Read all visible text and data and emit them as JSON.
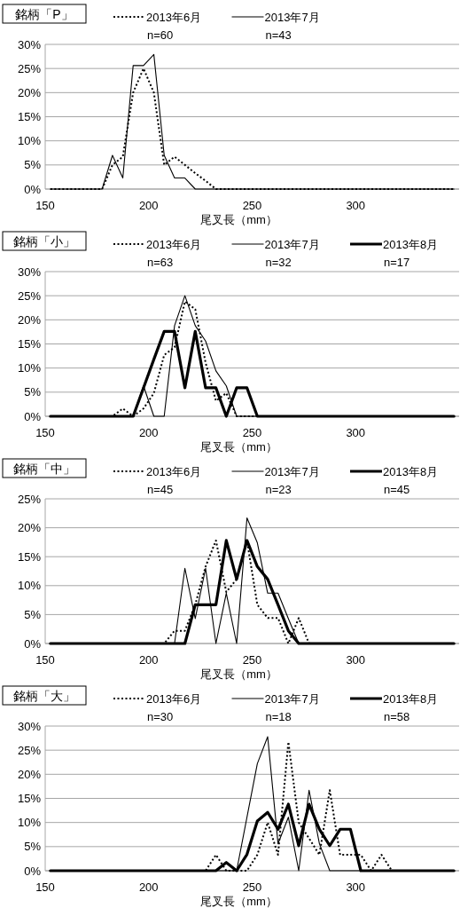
{
  "chart_data": [
    {
      "type": "line",
      "title": "銘柄「P」",
      "xlabel": "尾叉長（mm）",
      "legend": "top",
      "grid": "y",
      "marker": "none",
      "xlim": [
        150,
        350
      ],
      "xticks": [
        150,
        200,
        250,
        300
      ],
      "ylim": [
        0,
        30
      ],
      "yticks": [
        {
          "value": 0,
          "label": "0%"
        },
        {
          "value": 5,
          "label": "5%"
        },
        {
          "value": 10,
          "label": "10%"
        },
        {
          "value": 15,
          "label": "15%"
        },
        {
          "value": 20,
          "label": "20%"
        },
        {
          "value": 25,
          "label": "25%"
        },
        {
          "value": 30,
          "label": "30%"
        }
      ],
      "x": [
        152.5,
        157.5,
        162.5,
        167.5,
        172.5,
        177.5,
        182.5,
        187.5,
        192.5,
        197.5,
        202.5,
        207.5,
        212.5,
        217.5,
        222.5,
        227.5,
        232.5,
        237.5,
        242.5,
        247.5,
        252.5,
        257.5,
        262.5,
        267.5,
        272.5,
        277.5,
        282.5,
        287.5,
        292.5,
        297.5,
        302.5,
        307.5,
        312.5,
        317.5,
        322.5,
        327.5,
        332.5,
        337.5,
        342.5,
        347.5
      ],
      "series": [
        {
          "name": "2013年6月\nn=60",
          "color": "#000000",
          "line_style": "dotted",
          "values": [
            0,
            0,
            0,
            0,
            0,
            0,
            5,
            6.7,
            20,
            25,
            20,
            5,
            6.7,
            5,
            3.3,
            1.7,
            0,
            0,
            0,
            0,
            0,
            0,
            0,
            0,
            0,
            0,
            0,
            0,
            0,
            0,
            0,
            0,
            0,
            0,
            0,
            0,
            0,
            0,
            0,
            0
          ]
        },
        {
          "name": "2013年7月\nn=43",
          "color": "#000000",
          "line_style": "solid",
          "values": [
            0,
            0,
            0,
            0,
            0,
            0,
            7,
            2.3,
            25.6,
            25.6,
            27.9,
            7,
            2.3,
            2.3,
            0,
            0,
            0,
            0,
            0,
            0,
            0,
            0,
            0,
            0,
            0,
            0,
            0,
            0,
            0,
            0,
            0,
            0,
            0,
            0,
            0,
            0,
            0,
            0,
            0,
            0
          ]
        }
      ]
    },
    {
      "type": "line",
      "title": "銘柄「小」",
      "xlabel": "尾叉長（mm）",
      "legend": "top",
      "grid": "y",
      "marker": "none",
      "xlim": [
        150,
        350
      ],
      "xticks": [
        150,
        200,
        250,
        300
      ],
      "ylim": [
        0,
        30
      ],
      "yticks": [
        {
          "value": 0,
          "label": "0%"
        },
        {
          "value": 5,
          "label": "5%"
        },
        {
          "value": 10,
          "label": "10%"
        },
        {
          "value": 15,
          "label": "15%"
        },
        {
          "value": 20,
          "label": "20%"
        },
        {
          "value": 25,
          "label": "25%"
        },
        {
          "value": 30,
          "label": "30%"
        }
      ],
      "x": [
        152.5,
        157.5,
        162.5,
        167.5,
        172.5,
        177.5,
        182.5,
        187.5,
        192.5,
        197.5,
        202.5,
        207.5,
        212.5,
        217.5,
        222.5,
        227.5,
        232.5,
        237.5,
        242.5,
        247.5,
        252.5,
        257.5,
        262.5,
        267.5,
        272.5,
        277.5,
        282.5,
        287.5,
        292.5,
        297.5,
        302.5,
        307.5,
        312.5,
        317.5,
        322.5,
        327.5,
        332.5,
        337.5,
        342.5,
        347.5
      ],
      "series": [
        {
          "name": "2013年6月\nn=63",
          "color": "#000000",
          "line_style": "dotted",
          "values": [
            0,
            0,
            0,
            0,
            0,
            0,
            0,
            1.6,
            0,
            1.6,
            4.8,
            12.7,
            14.3,
            23.8,
            22.2,
            11.1,
            3.2,
            4.8,
            0,
            0,
            0,
            0,
            0,
            0,
            0,
            0,
            0,
            0,
            0,
            0,
            0,
            0,
            0,
            0,
            0,
            0,
            0,
            0,
            0,
            0
          ]
        },
        {
          "name": "2013年7月\nn=32",
          "color": "#000000",
          "line_style": "solid",
          "values": [
            0,
            0,
            0,
            0,
            0,
            0,
            0,
            0,
            0,
            6.3,
            0,
            0,
            18.8,
            25,
            18.8,
            15.6,
            9.4,
            6.3,
            0,
            0,
            0,
            0,
            0,
            0,
            0,
            0,
            0,
            0,
            0,
            0,
            0,
            0,
            0,
            0,
            0,
            0,
            0,
            0,
            0,
            0
          ]
        },
        {
          "name": "2013年8月\nn=17",
          "color": "#000000",
          "line_style": "solid",
          "values": [
            0,
            0,
            0,
            0,
            0,
            0,
            0,
            0,
            0,
            5.9,
            11.8,
            17.6,
            17.6,
            5.9,
            17.6,
            5.9,
            5.9,
            0,
            5.9,
            5.9,
            0,
            0,
            0,
            0,
            0,
            0,
            0,
            0,
            0,
            0,
            0,
            0,
            0,
            0,
            0,
            0,
            0,
            0,
            0,
            0
          ]
        }
      ]
    },
    {
      "type": "line",
      "title": "銘柄「中」",
      "xlabel": "尾叉長（mm）",
      "legend": "top",
      "grid": "y",
      "marker": "none",
      "xlim": [
        150,
        350
      ],
      "xticks": [
        150,
        200,
        250,
        300
      ],
      "ylim": [
        0,
        25
      ],
      "yticks": [
        {
          "value": 0,
          "label": "0%"
        },
        {
          "value": 5,
          "label": "5%"
        },
        {
          "value": 10,
          "label": "10%"
        },
        {
          "value": 15,
          "label": "15%"
        },
        {
          "value": 20,
          "label": "20%"
        },
        {
          "value": 25,
          "label": "25%"
        }
      ],
      "x": [
        152.5,
        157.5,
        162.5,
        167.5,
        172.5,
        177.5,
        182.5,
        187.5,
        192.5,
        197.5,
        202.5,
        207.5,
        212.5,
        217.5,
        222.5,
        227.5,
        232.5,
        237.5,
        242.5,
        247.5,
        252.5,
        257.5,
        262.5,
        267.5,
        272.5,
        277.5,
        282.5,
        287.5,
        292.5,
        297.5,
        302.5,
        307.5,
        312.5,
        317.5,
        322.5,
        327.5,
        332.5,
        337.5,
        342.5,
        347.5
      ],
      "series": [
        {
          "name": "2013年6月\nn=45",
          "color": "#000000",
          "line_style": "dotted",
          "values": [
            0,
            0,
            0,
            0,
            0,
            0,
            0,
            0,
            0,
            0,
            0,
            0,
            2.2,
            2.2,
            6.7,
            13.3,
            17.8,
            8.9,
            11.1,
            17.8,
            6.7,
            4.4,
            4.4,
            0,
            4.4,
            0,
            0,
            0,
            0,
            0,
            0,
            0,
            0,
            0,
            0,
            0,
            0,
            0,
            0,
            0
          ]
        },
        {
          "name": "2013年7月\nn=23",
          "color": "#000000",
          "line_style": "solid",
          "values": [
            0,
            0,
            0,
            0,
            0,
            0,
            0,
            0,
            0,
            0,
            0,
            0,
            0,
            13,
            4.3,
            13,
            0,
            8.7,
            0,
            21.7,
            17.4,
            8.7,
            8.7,
            4.3,
            0,
            0,
            0,
            0,
            0,
            0,
            0,
            0,
            0,
            0,
            0,
            0,
            0,
            0,
            0,
            0
          ]
        },
        {
          "name": "2013年8月\nn=45",
          "color": "#000000",
          "line_style": "solid",
          "values": [
            0,
            0,
            0,
            0,
            0,
            0,
            0,
            0,
            0,
            0,
            0,
            0,
            0,
            0,
            6.7,
            6.7,
            6.7,
            17.8,
            11.1,
            17.8,
            13.3,
            11.1,
            6.7,
            2.2,
            0,
            0,
            0,
            0,
            0,
            0,
            0,
            0,
            0,
            0,
            0,
            0,
            0,
            0,
            0,
            0
          ]
        }
      ]
    },
    {
      "type": "line",
      "title": "銘柄「大」",
      "xlabel": "尾叉長（mm）",
      "legend": "top",
      "grid": "y",
      "marker": "none",
      "xlim": [
        150,
        350
      ],
      "xticks": [
        150,
        200,
        250,
        300
      ],
      "ylim": [
        0,
        30
      ],
      "yticks": [
        {
          "value": 0,
          "label": "0%"
        },
        {
          "value": 5,
          "label": "5%"
        },
        {
          "value": 10,
          "label": "10%"
        },
        {
          "value": 15,
          "label": "15%"
        },
        {
          "value": 20,
          "label": "20%"
        },
        {
          "value": 25,
          "label": "25%"
        },
        {
          "value": 30,
          "label": "30%"
        }
      ],
      "x": [
        152.5,
        157.5,
        162.5,
        167.5,
        172.5,
        177.5,
        182.5,
        187.5,
        192.5,
        197.5,
        202.5,
        207.5,
        212.5,
        217.5,
        222.5,
        227.5,
        232.5,
        237.5,
        242.5,
        247.5,
        252.5,
        257.5,
        262.5,
        267.5,
        272.5,
        277.5,
        282.5,
        287.5,
        292.5,
        297.5,
        302.5,
        307.5,
        312.5,
        317.5,
        322.5,
        327.5,
        332.5,
        337.5,
        342.5,
        347.5
      ],
      "series": [
        {
          "name": "2013年6月\nn=30",
          "color": "#000000",
          "line_style": "dotted",
          "values": [
            0,
            0,
            0,
            0,
            0,
            0,
            0,
            0,
            0,
            0,
            0,
            0,
            0,
            0,
            0,
            0,
            3.3,
            0,
            0,
            0,
            3.3,
            10,
            3.3,
            26.7,
            10,
            6.7,
            3.3,
            16.7,
            3.3,
            3.3,
            3.3,
            0,
            3.3,
            0,
            0,
            0,
            0,
            0,
            0,
            0
          ]
        },
        {
          "name": "2013年7月\nn=18",
          "color": "#000000",
          "line_style": "solid",
          "values": [
            0,
            0,
            0,
            0,
            0,
            0,
            0,
            0,
            0,
            0,
            0,
            0,
            0,
            0,
            0,
            0,
            0,
            0,
            0,
            11.1,
            22.2,
            27.8,
            5.6,
            11.1,
            0,
            16.7,
            5.6,
            0,
            0,
            0,
            0,
            0,
            0,
            0,
            0,
            0,
            0,
            0,
            0,
            0
          ]
        },
        {
          "name": "2013年8月\nn=58",
          "color": "#000000",
          "line_style": "solid",
          "values": [
            0,
            0,
            0,
            0,
            0,
            0,
            0,
            0,
            0,
            0,
            0,
            0,
            0,
            0,
            0,
            0,
            0,
            1.7,
            0,
            3.4,
            10.3,
            12.1,
            8.6,
            13.8,
            5.2,
            13.8,
            8.6,
            5.2,
            8.6,
            8.6,
            0,
            0,
            0,
            0,
            0,
            0,
            0,
            0,
            0,
            0
          ]
        }
      ]
    }
  ]
}
